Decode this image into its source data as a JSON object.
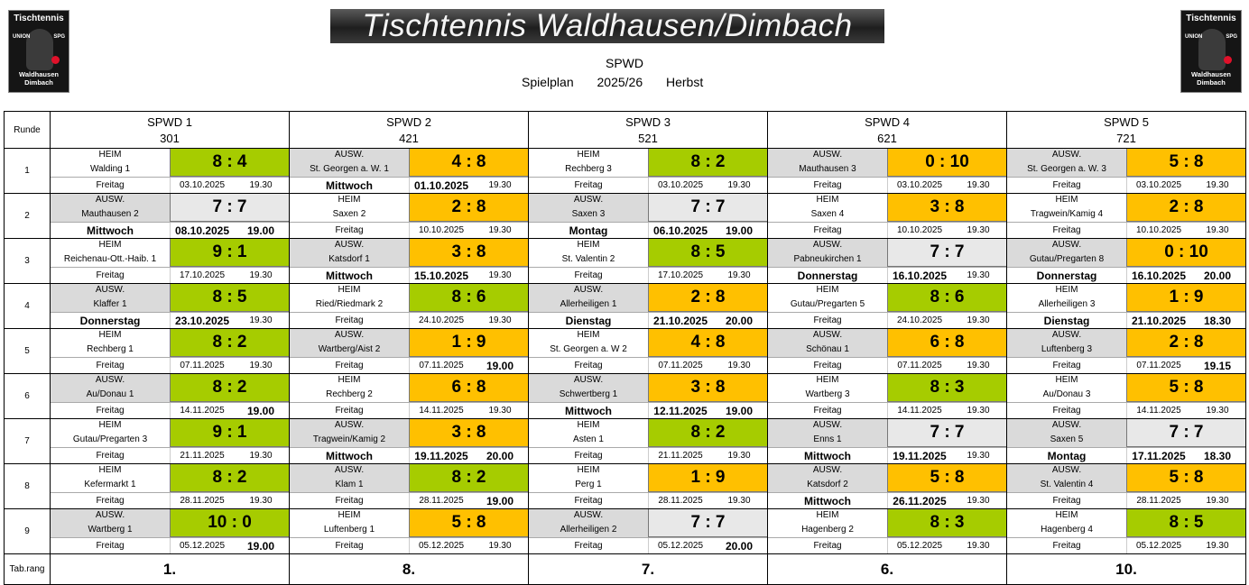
{
  "header": {
    "banner": "Tischtennis Waldhausen/Dimbach",
    "club": "SPWD",
    "plan_label": "Spielplan",
    "season": "2025/26",
    "half": "Herbst",
    "logo_title": "Tischtennis",
    "logo_sub": "Waldhausen Dimbach",
    "logo_side_left": "UNION",
    "logo_side_right": "SPG"
  },
  "labels": {
    "round": "Runde",
    "rank": "Tab.rang"
  },
  "teams": [
    {
      "name": "SPWD 1",
      "code": "301"
    },
    {
      "name": "SPWD 2",
      "code": "421"
    },
    {
      "name": "SPWD 3",
      "code": "521"
    },
    {
      "name": "SPWD 4",
      "code": "621"
    },
    {
      "name": "SPWD 5",
      "code": "721"
    }
  ],
  "rounds": [
    {
      "num": "1",
      "games": [
        {
          "loc": "HEIM",
          "opp": "Walding 1",
          "score": "8 : 4",
          "res": "g",
          "day": "Freitag",
          "date": "03.10.2025",
          "time": "19.30",
          "emph": false
        },
        {
          "loc": "AUSW.",
          "opp": "St. Georgen a. W. 1",
          "score": "4 : 8",
          "res": "o",
          "day": "Mittwoch",
          "date": "01.10.2025",
          "time": "19.30",
          "emph": true
        },
        {
          "loc": "HEIM",
          "opp": "Rechberg 3",
          "score": "8 : 2",
          "res": "g",
          "day": "Freitag",
          "date": "03.10.2025",
          "time": "19.30",
          "emph": false
        },
        {
          "loc": "AUSW.",
          "opp": "Mauthausen 3",
          "score": "0 : 10",
          "res": "o",
          "day": "Freitag",
          "date": "03.10.2025",
          "time": "19.30",
          "emph": false
        },
        {
          "loc": "AUSW.",
          "opp": "St. Georgen a. W. 3",
          "score": "5 : 8",
          "res": "o",
          "day": "Freitag",
          "date": "03.10.2025",
          "time": "19.30",
          "emph": false
        }
      ]
    },
    {
      "num": "2",
      "games": [
        {
          "loc": "AUSW.",
          "opp": "Mauthausen 2",
          "score": "7 : 7",
          "res": "d",
          "day": "Mittwoch",
          "date": "08.10.2025",
          "time": "19.00",
          "emph": true
        },
        {
          "loc": "HEIM",
          "opp": "Saxen 2",
          "score": "2 : 8",
          "res": "o",
          "day": "Freitag",
          "date": "10.10.2025",
          "time": "19.30",
          "emph": false
        },
        {
          "loc": "AUSW.",
          "opp": "Saxen 3",
          "score": "7 : 7",
          "res": "d",
          "day": "Montag",
          "date": "06.10.2025",
          "time": "19.00",
          "emph": true
        },
        {
          "loc": "HEIM",
          "opp": "Saxen 4",
          "score": "3 : 8",
          "res": "o",
          "day": "Freitag",
          "date": "10.10.2025",
          "time": "19.30",
          "emph": false
        },
        {
          "loc": "HEIM",
          "opp": "Tragwein/Kamig 4",
          "score": "2 : 8",
          "res": "o",
          "day": "Freitag",
          "date": "10.10.2025",
          "time": "19.30",
          "emph": false
        }
      ]
    },
    {
      "num": "3",
      "games": [
        {
          "loc": "HEIM",
          "opp": "Reichenau-Ott.-Haib. 1",
          "score": "9 : 1",
          "res": "g",
          "day": "Freitag",
          "date": "17.10.2025",
          "time": "19.30",
          "emph": false
        },
        {
          "loc": "AUSW.",
          "opp": "Katsdorf 1",
          "score": "3 : 8",
          "res": "o",
          "day": "Mittwoch",
          "date": "15.10.2025",
          "time": "19.30",
          "emph": true
        },
        {
          "loc": "HEIM",
          "opp": "St. Valentin 2",
          "score": "8 : 5",
          "res": "g",
          "day": "Freitag",
          "date": "17.10.2025",
          "time": "19.30",
          "emph": false
        },
        {
          "loc": "AUSW.",
          "opp": "Pabneukirchen 1",
          "score": "7 : 7",
          "res": "d",
          "day": "Donnerstag",
          "date": "16.10.2025",
          "time": "19.30",
          "emph": true
        },
        {
          "loc": "AUSW.",
          "opp": "Gutau/Pregarten 8",
          "score": "0 : 10",
          "res": "o",
          "day": "Donnerstag",
          "date": "16.10.2025",
          "time": "20.00",
          "emph": true
        }
      ]
    },
    {
      "num": "4",
      "games": [
        {
          "loc": "AUSW.",
          "opp": "Klaffer 1",
          "score": "8 : 5",
          "res": "g",
          "day": "Donnerstag",
          "date": "23.10.2025",
          "time": "19.30",
          "emph": true
        },
        {
          "loc": "HEIM",
          "opp": "Ried/Riedmark 2",
          "score": "8 : 6",
          "res": "g",
          "day": "Freitag",
          "date": "24.10.2025",
          "time": "19.30",
          "emph": false
        },
        {
          "loc": "AUSW.",
          "opp": "Allerheiligen 1",
          "score": "2 : 8",
          "res": "o",
          "day": "Dienstag",
          "date": "21.10.2025",
          "time": "20.00",
          "emph": true
        },
        {
          "loc": "HEIM",
          "opp": "Gutau/Pregarten 5",
          "score": "8 : 6",
          "res": "g",
          "day": "Freitag",
          "date": "24.10.2025",
          "time": "19.30",
          "emph": false
        },
        {
          "loc": "HEIM",
          "opp": "Allerheiligen 3",
          "score": "1 : 9",
          "res": "o",
          "day": "Dienstag",
          "date": "21.10.2025",
          "time": "18.30",
          "emph": true
        }
      ]
    },
    {
      "num": "5",
      "games": [
        {
          "loc": "HEIM",
          "opp": "Rechberg 1",
          "score": "8 : 2",
          "res": "g",
          "day": "Freitag",
          "date": "07.11.2025",
          "time": "19.30",
          "emph": false
        },
        {
          "loc": "AUSW.",
          "opp": "Wartberg/Aist 2",
          "score": "1 : 9",
          "res": "o",
          "day": "Freitag",
          "date": "07.11.2025",
          "time": "19.00",
          "emph": false,
          "timeEmph": true
        },
        {
          "loc": "HEIM",
          "opp": "St. Georgen a. W 2",
          "score": "4 : 8",
          "res": "o",
          "day": "Freitag",
          "date": "07.11.2025",
          "time": "19.30",
          "emph": false
        },
        {
          "loc": "AUSW.",
          "opp": "Schönau 1",
          "score": "6 : 8",
          "res": "o",
          "day": "Freitag",
          "date": "07.11.2025",
          "time": "19.30",
          "emph": false
        },
        {
          "loc": "AUSW.",
          "opp": "Luftenberg 3",
          "score": "2 : 8",
          "res": "o",
          "day": "Freitag",
          "date": "07.11.2025",
          "time": "19.15",
          "emph": false,
          "timeEmph": true
        }
      ]
    },
    {
      "num": "6",
      "games": [
        {
          "loc": "AUSW.",
          "opp": "Au/Donau 1",
          "score": "8 : 2",
          "res": "g",
          "day": "Freitag",
          "date": "14.11.2025",
          "time": "19.00",
          "emph": false,
          "timeEmph": true
        },
        {
          "loc": "HEIM",
          "opp": "Rechberg 2",
          "score": "6 : 8",
          "res": "o",
          "day": "Freitag",
          "date": "14.11.2025",
          "time": "19.30",
          "emph": false
        },
        {
          "loc": "AUSW.",
          "opp": "Schwertberg 1",
          "score": "3 : 8",
          "res": "o",
          "day": "Mittwoch",
          "date": "12.11.2025",
          "time": "19.00",
          "emph": true
        },
        {
          "loc": "HEIM",
          "opp": "Wartberg 3",
          "score": "8 : 3",
          "res": "g",
          "day": "Freitag",
          "date": "14.11.2025",
          "time": "19.30",
          "emph": false
        },
        {
          "loc": "HEIM",
          "opp": "Au/Donau 3",
          "score": "5 : 8",
          "res": "o",
          "day": "Freitag",
          "date": "14.11.2025",
          "time": "19.30",
          "emph": false
        }
      ]
    },
    {
      "num": "7",
      "games": [
        {
          "loc": "HEIM",
          "opp": "Gutau/Pregarten 3",
          "score": "9 : 1",
          "res": "g",
          "day": "Freitag",
          "date": "21.11.2025",
          "time": "19.30",
          "emph": false
        },
        {
          "loc": "AUSW.",
          "opp": "Tragwein/Kamig 2",
          "score": "3 : 8",
          "res": "o",
          "day": "Mittwoch",
          "date": "19.11.2025",
          "time": "20.00",
          "emph": true
        },
        {
          "loc": "HEIM",
          "opp": "Asten 1",
          "score": "8 : 2",
          "res": "g",
          "day": "Freitag",
          "date": "21.11.2025",
          "time": "19.30",
          "emph": false
        },
        {
          "loc": "AUSW.",
          "opp": "Enns 1",
          "score": "7 : 7",
          "res": "d",
          "day": "Mittwoch",
          "date": "19.11.2025",
          "time": "19.30",
          "emph": true
        },
        {
          "loc": "AUSW.",
          "opp": "Saxen 5",
          "score": "7 : 7",
          "res": "d",
          "day": "Montag",
          "date": "17.11.2025",
          "time": "18.30",
          "emph": true
        }
      ]
    },
    {
      "num": "8",
      "games": [
        {
          "loc": "HEIM",
          "opp": "Kefermarkt 1",
          "score": "8 : 2",
          "res": "g",
          "day": "Freitag",
          "date": "28.11.2025",
          "time": "19.30",
          "emph": false
        },
        {
          "loc": "AUSW.",
          "opp": "Klam 1",
          "score": "8 : 2",
          "res": "g",
          "day": "Freitag",
          "date": "28.11.2025",
          "time": "19.00",
          "emph": false,
          "timeEmph": true
        },
        {
          "loc": "HEIM",
          "opp": "Perg 1",
          "score": "1 : 9",
          "res": "o",
          "day": "Freitag",
          "date": "28.11.2025",
          "time": "19.30",
          "emph": false
        },
        {
          "loc": "AUSW.",
          "opp": "Katsdorf 2",
          "score": "5 : 8",
          "res": "o",
          "day": "Mittwoch",
          "date": "26.11.2025",
          "time": "19.30",
          "emph": true
        },
        {
          "loc": "AUSW.",
          "opp": "St. Valentin 4",
          "score": "5 : 8",
          "res": "o",
          "day": "Freitag",
          "date": "28.11.2025",
          "time": "19.30",
          "emph": false
        }
      ]
    },
    {
      "num": "9",
      "games": [
        {
          "loc": "AUSW.",
          "opp": "Wartberg 1",
          "score": "10 : 0",
          "res": "g",
          "day": "Freitag",
          "date": "05.12.2025",
          "time": "19.00",
          "emph": false,
          "timeEmph": true
        },
        {
          "loc": "HEIM",
          "opp": "Luftenberg 1",
          "score": "5 : 8",
          "res": "o",
          "day": "Freitag",
          "date": "05.12.2025",
          "time": "19.30",
          "emph": false
        },
        {
          "loc": "AUSW.",
          "opp": "Allerheiligen 2",
          "score": "7 : 7",
          "res": "d",
          "day": "Freitag",
          "date": "05.12.2025",
          "time": "20.00",
          "emph": false,
          "timeEmph": true
        },
        {
          "loc": "HEIM",
          "opp": "Hagenberg 2",
          "score": "8 : 3",
          "res": "g",
          "day": "Freitag",
          "date": "05.12.2025",
          "time": "19.30",
          "emph": false
        },
        {
          "loc": "HEIM",
          "opp": "Hagenberg 4",
          "score": "8 : 5",
          "res": "g",
          "day": "Freitag",
          "date": "05.12.2025",
          "time": "19.30",
          "emph": false
        }
      ]
    }
  ],
  "ranks": [
    "1.",
    "8.",
    "7.",
    "6.",
    "10."
  ],
  "colors": {
    "win": "#a6cc00",
    "loss": "#ffc000",
    "draw": "#e8e8e8",
    "away": "#dadada"
  }
}
